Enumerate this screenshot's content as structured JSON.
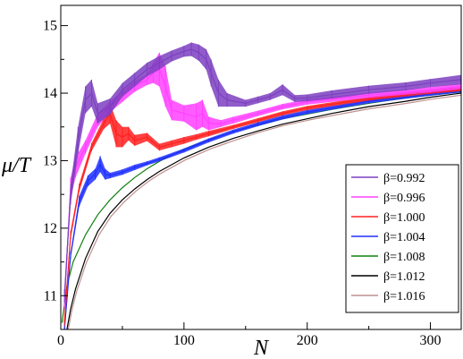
{
  "chart_data": {
    "type": "line",
    "xlabel": "N",
    "ylabel": "μ/T",
    "xlim": [
      0,
      325
    ],
    "ylim": [
      10.5,
      15.3
    ],
    "xticks": [
      0,
      100,
      200,
      300
    ],
    "yticks": [
      11,
      12,
      13,
      14,
      15
    ],
    "xtick_labels": [
      "0",
      "100",
      "200",
      "300"
    ],
    "ytick_labels": [
      "11",
      "12",
      "13",
      "14",
      "15"
    ],
    "grid": false,
    "legend_position": "right",
    "series": [
      {
        "name": "β=0.992",
        "color": "#7c40c0",
        "x": [
          3,
          8,
          14,
          20,
          25,
          30,
          40,
          50,
          60,
          70,
          80,
          90,
          100,
          106,
          112,
          118,
          122,
          128,
          135,
          150,
          160,
          170,
          180,
          190,
          200,
          220,
          250,
          280,
          300,
          325
        ],
        "y": [
          11.0,
          12.5,
          13.3,
          13.9,
          14.0,
          13.7,
          13.8,
          14.05,
          14.2,
          14.35,
          14.45,
          14.55,
          14.62,
          14.65,
          14.6,
          14.5,
          14.3,
          14.0,
          13.9,
          13.85,
          13.9,
          13.95,
          14.05,
          13.92,
          13.93,
          13.98,
          14.05,
          14.1,
          14.15,
          14.2
        ],
        "band": [
          0.1,
          0.15,
          0.2,
          0.2,
          0.2,
          0.15,
          0.12,
          0.1,
          0.1,
          0.1,
          0.1,
          0.08,
          0.08,
          0.1,
          0.12,
          0.15,
          0.2,
          0.2,
          0.1,
          0.05,
          0.05,
          0.05,
          0.08,
          0.05,
          0.05,
          0.06,
          0.06,
          0.06,
          0.06,
          0.07
        ]
      },
      {
        "name": "β=0.996",
        "color": "#ff40ff",
        "x": [
          3,
          8,
          12,
          20,
          30,
          40,
          50,
          60,
          70,
          75,
          80,
          85,
          90,
          100,
          110,
          115,
          120,
          130,
          140,
          160,
          180,
          200,
          250,
          300,
          325
        ],
        "y": [
          10.9,
          12.6,
          12.9,
          13.2,
          13.6,
          13.8,
          13.95,
          14.1,
          14.2,
          14.3,
          14.35,
          14.1,
          13.75,
          13.7,
          13.65,
          13.7,
          13.55,
          13.55,
          13.6,
          13.7,
          13.8,
          13.87,
          13.97,
          14.05,
          14.1
        ],
        "band": [
          0.1,
          0.15,
          0.15,
          0.1,
          0.1,
          0.08,
          0.08,
          0.08,
          0.08,
          0.15,
          0.25,
          0.3,
          0.15,
          0.12,
          0.2,
          0.2,
          0.1,
          0.05,
          0.05,
          0.04,
          0.04,
          0.04,
          0.04,
          0.04,
          0.04
        ]
      },
      {
        "name": "β=1.000",
        "color": "#ff2020",
        "x": [
          3,
          8,
          15,
          25,
          35,
          40,
          45,
          50,
          55,
          60,
          70,
          80,
          90,
          100,
          110,
          120,
          140,
          160,
          180,
          200,
          250,
          300,
          325
        ],
        "y": [
          10.6,
          11.9,
          12.6,
          13.2,
          13.55,
          13.7,
          13.4,
          13.35,
          13.4,
          13.3,
          13.35,
          13.2,
          13.25,
          13.3,
          13.35,
          13.4,
          13.5,
          13.6,
          13.7,
          13.78,
          13.92,
          14.02,
          14.06
        ],
        "band": [
          0.05,
          0.06,
          0.06,
          0.06,
          0.08,
          0.15,
          0.2,
          0.15,
          0.1,
          0.08,
          0.06,
          0.05,
          0.05,
          0.05,
          0.04,
          0.04,
          0.03,
          0.03,
          0.03,
          0.03,
          0.03,
          0.03,
          0.03
        ]
      },
      {
        "name": "β=1.004",
        "color": "#2030ff",
        "x": [
          3,
          8,
          15,
          22,
          28,
          32,
          36,
          40,
          50,
          60,
          70,
          80,
          100,
          120,
          140,
          160,
          180,
          200,
          250,
          300,
          325
        ],
        "y": [
          10.5,
          11.6,
          12.4,
          12.7,
          12.8,
          12.95,
          12.8,
          12.78,
          12.83,
          12.9,
          12.96,
          13.02,
          13.15,
          13.3,
          13.43,
          13.54,
          13.64,
          13.72,
          13.88,
          13.99,
          14.04
        ],
        "band": [
          0.04,
          0.05,
          0.08,
          0.08,
          0.08,
          0.12,
          0.08,
          0.04,
          0.04,
          0.04,
          0.03,
          0.03,
          0.03,
          0.03,
          0.03,
          0.03,
          0.03,
          0.03,
          0.03,
          0.03,
          0.03
        ]
      },
      {
        "name": "β=1.008",
        "color": "#108010",
        "x": [
          1,
          5,
          10,
          20,
          30,
          40,
          50,
          60,
          70,
          80,
          100,
          120,
          140,
          160,
          180,
          200,
          220,
          250,
          280,
          300,
          325
        ],
        "y": [
          10.6,
          11.15,
          11.5,
          11.9,
          12.2,
          12.42,
          12.6,
          12.75,
          12.88,
          12.99,
          13.17,
          13.31,
          13.43,
          13.53,
          13.62,
          13.69,
          13.76,
          13.85,
          13.93,
          13.97,
          14.02
        ],
        "band": [
          0,
          0,
          0,
          0,
          0,
          0,
          0,
          0,
          0,
          0,
          0,
          0,
          0,
          0,
          0,
          0,
          0,
          0,
          0,
          0,
          0
        ]
      },
      {
        "name": "β=1.012",
        "color": "#000000",
        "x": [
          5,
          8,
          12,
          20,
          30,
          40,
          50,
          60,
          70,
          80,
          100,
          120,
          140,
          160,
          180,
          200,
          220,
          250,
          280,
          300,
          325
        ],
        "y": [
          10.5,
          10.8,
          11.1,
          11.55,
          11.95,
          12.22,
          12.42,
          12.58,
          12.72,
          12.84,
          13.04,
          13.2,
          13.33,
          13.44,
          13.54,
          13.62,
          13.7,
          13.8,
          13.88,
          13.94,
          14.0
        ],
        "band": [
          0,
          0,
          0,
          0,
          0,
          0,
          0,
          0,
          0,
          0,
          0,
          0,
          0,
          0,
          0,
          0,
          0,
          0,
          0,
          0,
          0
        ]
      },
      {
        "name": "β=1.016",
        "color": "#c09090",
        "x": [
          6,
          9,
          13,
          21,
          31,
          41,
          51,
          61,
          71,
          81,
          101,
          121,
          141,
          161,
          181,
          201,
          221,
          251,
          281,
          301,
          325
        ],
        "y": [
          10.5,
          10.78,
          11.07,
          11.5,
          11.9,
          12.18,
          12.38,
          12.55,
          12.69,
          12.81,
          13.01,
          13.17,
          13.3,
          13.42,
          13.52,
          13.6,
          13.67,
          13.77,
          13.85,
          13.91,
          13.97
        ],
        "band": [
          0,
          0,
          0,
          0,
          0,
          0,
          0,
          0,
          0,
          0,
          0,
          0,
          0,
          0,
          0,
          0,
          0,
          0,
          0,
          0,
          0
        ]
      }
    ]
  }
}
